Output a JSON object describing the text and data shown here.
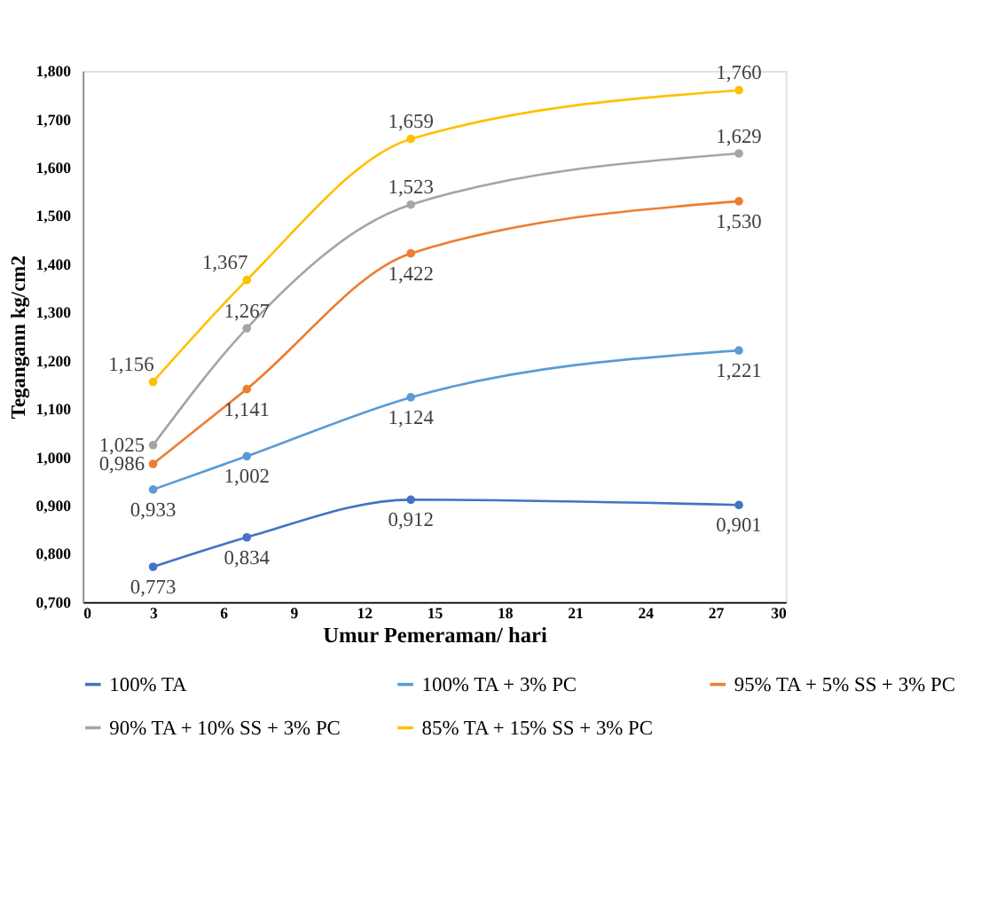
{
  "chart_data": {
    "type": "line",
    "xlabel": "Umur Pemeraman/ hari",
    "ylabel": "Tegangann kg/cm2",
    "x": [
      3,
      7,
      14,
      28
    ],
    "series": [
      {
        "name": "100% TA",
        "color": "#4472c4",
        "values": [
          0.773,
          0.834,
          0.912,
          0.901
        ],
        "value_labels": [
          "0,773",
          "0,834",
          "0,912",
          "0,901"
        ]
      },
      {
        "name": "100% TA + 3% PC",
        "color": "#5b9bd5",
        "values": [
          0.933,
          1.002,
          1.124,
          1.221
        ],
        "value_labels": [
          "0,933",
          "1,002",
          "1,124",
          "1,221"
        ]
      },
      {
        "name": "95% TA + 5% SS + 3% PC",
        "color": "#ed7d31",
        "values": [
          0.986,
          1.141,
          1.422,
          1.53
        ],
        "value_labels": [
          "0,986",
          "1,141",
          "1,422",
          "1,530"
        ]
      },
      {
        "name": "90% TA + 10% SS + 3% PC",
        "color": "#a5a5a5",
        "values": [
          1.025,
          1.267,
          1.523,
          1.629
        ],
        "value_labels": [
          "1,025",
          "1,267",
          "1,523",
          "1,629"
        ]
      },
      {
        "name": "85% TA + 15% SS + 3% PC",
        "color": "#ffc000",
        "values": [
          1.156,
          1.367,
          1.659,
          1.76
        ],
        "value_labels": [
          "1,156",
          "1,367",
          "1,659",
          "1,760"
        ]
      }
    ],
    "xlim": [
      0,
      30
    ],
    "xticks": [
      0,
      3,
      6,
      9,
      12,
      15,
      18,
      21,
      24,
      27,
      30
    ],
    "ylim": [
      0.7,
      1.8
    ],
    "yticks": [
      {
        "value": 0.7,
        "label": "0,700"
      },
      {
        "value": 0.8,
        "label": "0,800"
      },
      {
        "value": 0.9,
        "label": "0,900"
      },
      {
        "value": 1.0,
        "label": "1,000"
      },
      {
        "value": 1.1,
        "label": "1,100"
      },
      {
        "value": 1.2,
        "label": "1,200"
      },
      {
        "value": 1.3,
        "label": "1,300"
      },
      {
        "value": 1.4,
        "label": "1,400"
      },
      {
        "value": 1.5,
        "label": "1,500"
      },
      {
        "value": 1.6,
        "label": "1,600"
      },
      {
        "value": 1.7,
        "label": "1,700"
      },
      {
        "value": 1.8,
        "label": "1,800"
      }
    ],
    "grid": false,
    "legend": "bottom",
    "marker": "circle",
    "line_style": "solid"
  }
}
